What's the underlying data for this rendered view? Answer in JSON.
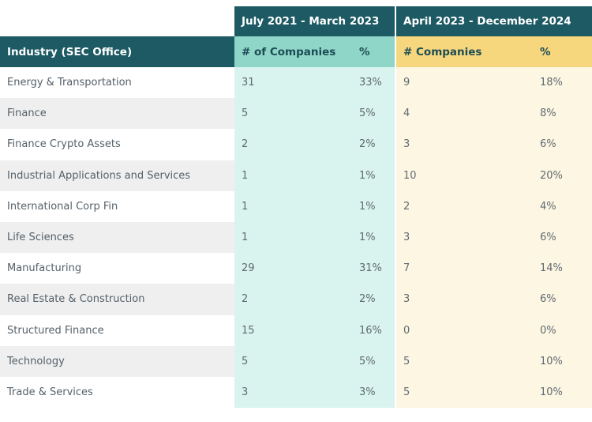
{
  "periods": {
    "period1": "July 2021 - March 2023",
    "period2": "April 2023 - December 2024"
  },
  "headers": {
    "industry": "Industry (SEC Office)",
    "count1": "# of Companies",
    "pct1": "%",
    "count2": "# Companies",
    "pct2": "%"
  },
  "colors": {
    "header_dark": "#1d5a64",
    "teal_header": "#8fd6c8",
    "teal_body": "#d9f3ee",
    "yellow_header": "#f6d77d",
    "yellow_body": "#fdf6e3"
  },
  "rows": [
    {
      "industry": "Energy & Transportation",
      "n1": "31",
      "p1": "33%",
      "n2": "9",
      "p2": "18%"
    },
    {
      "industry": "Finance",
      "n1": "5",
      "p1": "5%",
      "n2": "4",
      "p2": "8%"
    },
    {
      "industry": "Finance Crypto Assets",
      "n1": "2",
      "p1": "2%",
      "n2": "3",
      "p2": "6%"
    },
    {
      "industry": "Industrial Applications and Services",
      "n1": "1",
      "p1": "1%",
      "n2": "10",
      "p2": "20%"
    },
    {
      "industry": "International Corp Fin",
      "n1": "1",
      "p1": "1%",
      "n2": "2",
      "p2": "4%"
    },
    {
      "industry": "Life Sciences",
      "n1": "1",
      "p1": "1%",
      "n2": "3",
      "p2": "6%"
    },
    {
      "industry": "Manufacturing",
      "n1": "29",
      "p1": "31%",
      "n2": "7",
      "p2": "14%"
    },
    {
      "industry": "Real Estate & Construction",
      "n1": "2",
      "p1": "2%",
      "n2": "3",
      "p2": "6%"
    },
    {
      "industry": "Structured Finance",
      "n1": "15",
      "p1": "16%",
      "n2": "0",
      "p2": "0%"
    },
    {
      "industry": "Technology",
      "n1": "5",
      "p1": "5%",
      "n2": "5",
      "p2": "10%"
    },
    {
      "industry": "Trade & Services",
      "n1": "3",
      "p1": "3%",
      "n2": "5",
      "p2": "10%"
    }
  ]
}
